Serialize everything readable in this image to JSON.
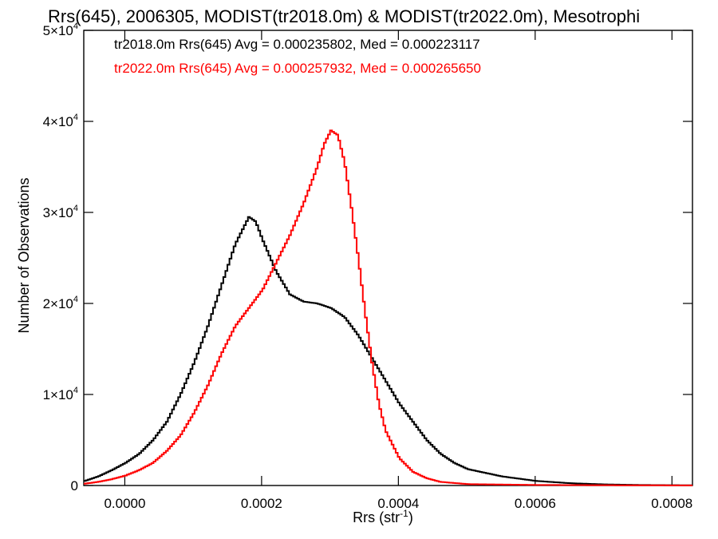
{
  "chart_data": {
    "type": "line",
    "title": "Rrs(645), 2006305, MODIST(tr2018.0m) & MODIST(tr2022.0m), Mesotrophi",
    "xlabel": "Rrs (str",
    "xlabel_sup": "-1",
    "xlabel_tail": ")",
    "ylabel": "Number of Observations",
    "xlim": [
      -6e-05,
      0.00083
    ],
    "ylim": [
      0,
      50000
    ],
    "x_ticks": [
      0.0,
      0.0002,
      0.0004,
      0.0006,
      0.0008
    ],
    "x_tick_labels": [
      "0.0000",
      "0.0002",
      "0.0004",
      "0.0006",
      "0.0008"
    ],
    "y_ticks": [
      {
        "value": 0,
        "label": "0",
        "exp": ""
      },
      {
        "value": 10000,
        "label": "1×10",
        "exp": "4"
      },
      {
        "value": 20000,
        "label": "2×10",
        "exp": "4"
      },
      {
        "value": 30000,
        "label": "3×10",
        "exp": "4"
      },
      {
        "value": 40000,
        "label": "4×10",
        "exp": "4"
      },
      {
        "value": 50000,
        "label": "5×10",
        "exp": "4"
      }
    ],
    "grid": false,
    "legend_placement": "top-left",
    "series": [
      {
        "name": "tr2018.0m",
        "color": "#000000",
        "legend": "tr2018.0m Rrs(645) Avg = 0.000235802, Med = 0.000223117",
        "points": [
          [
            -6e-05,
            500
          ],
          [
            -4e-05,
            1000
          ],
          [
            -2e-05,
            1700
          ],
          [
            0.0,
            2500
          ],
          [
            2e-05,
            3500
          ],
          [
            4e-05,
            5000
          ],
          [
            6e-05,
            7000
          ],
          [
            8e-05,
            10000
          ],
          [
            0.0001,
            13500
          ],
          [
            0.00012,
            17500
          ],
          [
            0.00014,
            22000
          ],
          [
            0.00016,
            26500
          ],
          [
            0.00018,
            29500
          ],
          [
            0.00019,
            29000
          ],
          [
            0.0002,
            27000
          ],
          [
            0.00022,
            23500
          ],
          [
            0.00024,
            21000
          ],
          [
            0.00026,
            20200
          ],
          [
            0.00028,
            20000
          ],
          [
            0.0003,
            19500
          ],
          [
            0.00032,
            18500
          ],
          [
            0.00034,
            16500
          ],
          [
            0.00036,
            14000
          ],
          [
            0.00038,
            11500
          ],
          [
            0.0004,
            9000
          ],
          [
            0.00042,
            7000
          ],
          [
            0.00044,
            5000
          ],
          [
            0.00046,
            3500
          ],
          [
            0.00048,
            2500
          ],
          [
            0.0005,
            1800
          ],
          [
            0.00055,
            1000
          ],
          [
            0.0006,
            500
          ],
          [
            0.00065,
            250
          ],
          [
            0.0007,
            120
          ],
          [
            0.00075,
            60
          ],
          [
            0.0008,
            30
          ],
          [
            0.00083,
            20
          ]
        ]
      },
      {
        "name": "tr2022.0m",
        "color": "#ff0000",
        "legend": "tr2022.0m Rrs(645) Avg = 0.000257932, Med = 0.000265650",
        "points": [
          [
            -6e-05,
            200
          ],
          [
            -4e-05,
            400
          ],
          [
            -2e-05,
            700
          ],
          [
            0.0,
            1100
          ],
          [
            2e-05,
            1700
          ],
          [
            4e-05,
            2500
          ],
          [
            6e-05,
            3800
          ],
          [
            8e-05,
            5500
          ],
          [
            0.0001,
            8000
          ],
          [
            0.00012,
            11000
          ],
          [
            0.00014,
            14500
          ],
          [
            0.00016,
            17500
          ],
          [
            0.00018,
            19500
          ],
          [
            0.0002,
            21500
          ],
          [
            0.00022,
            24500
          ],
          [
            0.00024,
            27500
          ],
          [
            0.00026,
            31000
          ],
          [
            0.00028,
            35000
          ],
          [
            0.00029,
            37500
          ],
          [
            0.0003,
            39000
          ],
          [
            0.00031,
            38500
          ],
          [
            0.00032,
            35500
          ],
          [
            0.00033,
            30500
          ],
          [
            0.00034,
            25000
          ],
          [
            0.00035,
            19000
          ],
          [
            0.00036,
            13500
          ],
          [
            0.00037,
            9000
          ],
          [
            0.00038,
            6000
          ],
          [
            0.0004,
            3000
          ],
          [
            0.00042,
            1500
          ],
          [
            0.00044,
            800
          ],
          [
            0.00046,
            400
          ],
          [
            0.0005,
            150
          ],
          [
            0.0006,
            60
          ],
          [
            0.0007,
            30
          ],
          [
            0.0008,
            15
          ],
          [
            0.00083,
            10
          ]
        ]
      }
    ]
  }
}
